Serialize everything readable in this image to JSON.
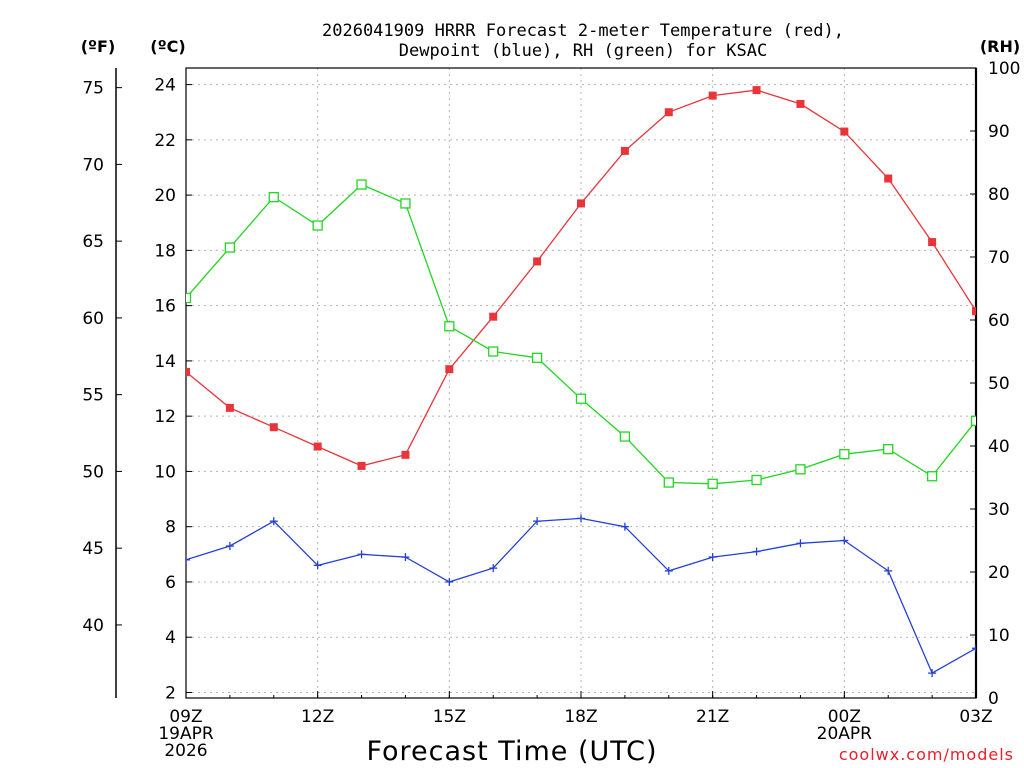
{
  "chart_data": {
    "type": "line",
    "title_lines": [
      "2026041909 HRRR Forecast 2-meter Temperature (red),",
      "Dewpoint (blue), RH (green) for KSAC"
    ],
    "xlabel": "Forecast Time (UTC)",
    "credit": "coolwx.com/models",
    "credit_color": "#e8202a",
    "units": {
      "fahrenheit": "(ºF)",
      "celsius": "(ºC)",
      "rh": "(RH)"
    },
    "x_hours": [
      0,
      1,
      2,
      3,
      4,
      5,
      6,
      7,
      8,
      9,
      10,
      11,
      12,
      13,
      14,
      15,
      16,
      17,
      18
    ],
    "x_range": [
      0,
      18
    ],
    "x_ticks": [
      {
        "hour": 0,
        "lines": [
          "09Z",
          "19APR",
          "2026"
        ]
      },
      {
        "hour": 3,
        "lines": [
          "12Z"
        ]
      },
      {
        "hour": 6,
        "lines": [
          "15Z"
        ]
      },
      {
        "hour": 9,
        "lines": [
          "18Z"
        ]
      },
      {
        "hour": 12,
        "lines": [
          "21Z"
        ]
      },
      {
        "hour": 15,
        "lines": [
          "00Z",
          "20APR"
        ]
      },
      {
        "hour": 18,
        "lines": [
          "03Z"
        ]
      }
    ],
    "celsius_axis": {
      "range": [
        1.8,
        24.6
      ],
      "ticks": [
        "2",
        "4",
        "6",
        "8",
        "10",
        "12",
        "14",
        "16",
        "18",
        "20",
        "22",
        "24"
      ]
    },
    "fahrenheit_axis": {
      "range": [
        35.24,
        76.28
      ],
      "ticks": [
        "40",
        "45",
        "50",
        "55",
        "60",
        "65",
        "70",
        "75"
      ]
    },
    "rh_axis": {
      "range": [
        0,
        100
      ],
      "ticks": [
        "0",
        "10",
        "20",
        "30",
        "40",
        "50",
        "60",
        "70",
        "80",
        "90",
        "100"
      ]
    },
    "series": [
      {
        "name": "Temperature (°C)",
        "axis": "celsius",
        "color": "#e8353a",
        "marker": "filled-square",
        "values": [
          13.6,
          12.3,
          11.6,
          10.9,
          10.2,
          10.6,
          13.7,
          15.6,
          17.6,
          19.7,
          21.6,
          23.0,
          23.6,
          23.8,
          23.3,
          22.3,
          20.6,
          18.3,
          15.8
        ]
      },
      {
        "name": "Dewpoint (°C)",
        "axis": "celsius",
        "color": "#2440d6",
        "marker": "plus",
        "values": [
          6.8,
          7.3,
          8.2,
          6.6,
          7.0,
          6.9,
          6.0,
          6.5,
          8.2,
          8.3,
          8.0,
          6.4,
          6.9,
          7.1,
          7.4,
          7.5,
          6.4,
          2.7,
          3.6
        ]
      },
      {
        "name": "RH (%)",
        "axis": "rh",
        "color": "#22d622",
        "marker": "open-square",
        "values": [
          63.5,
          71.5,
          79.5,
          75.0,
          81.5,
          78.5,
          59.0,
          55.0,
          54.0,
          47.5,
          41.5,
          34.2,
          34.0,
          34.6,
          36.3,
          38.7,
          39.5,
          35.2,
          44.0
        ]
      }
    ]
  }
}
